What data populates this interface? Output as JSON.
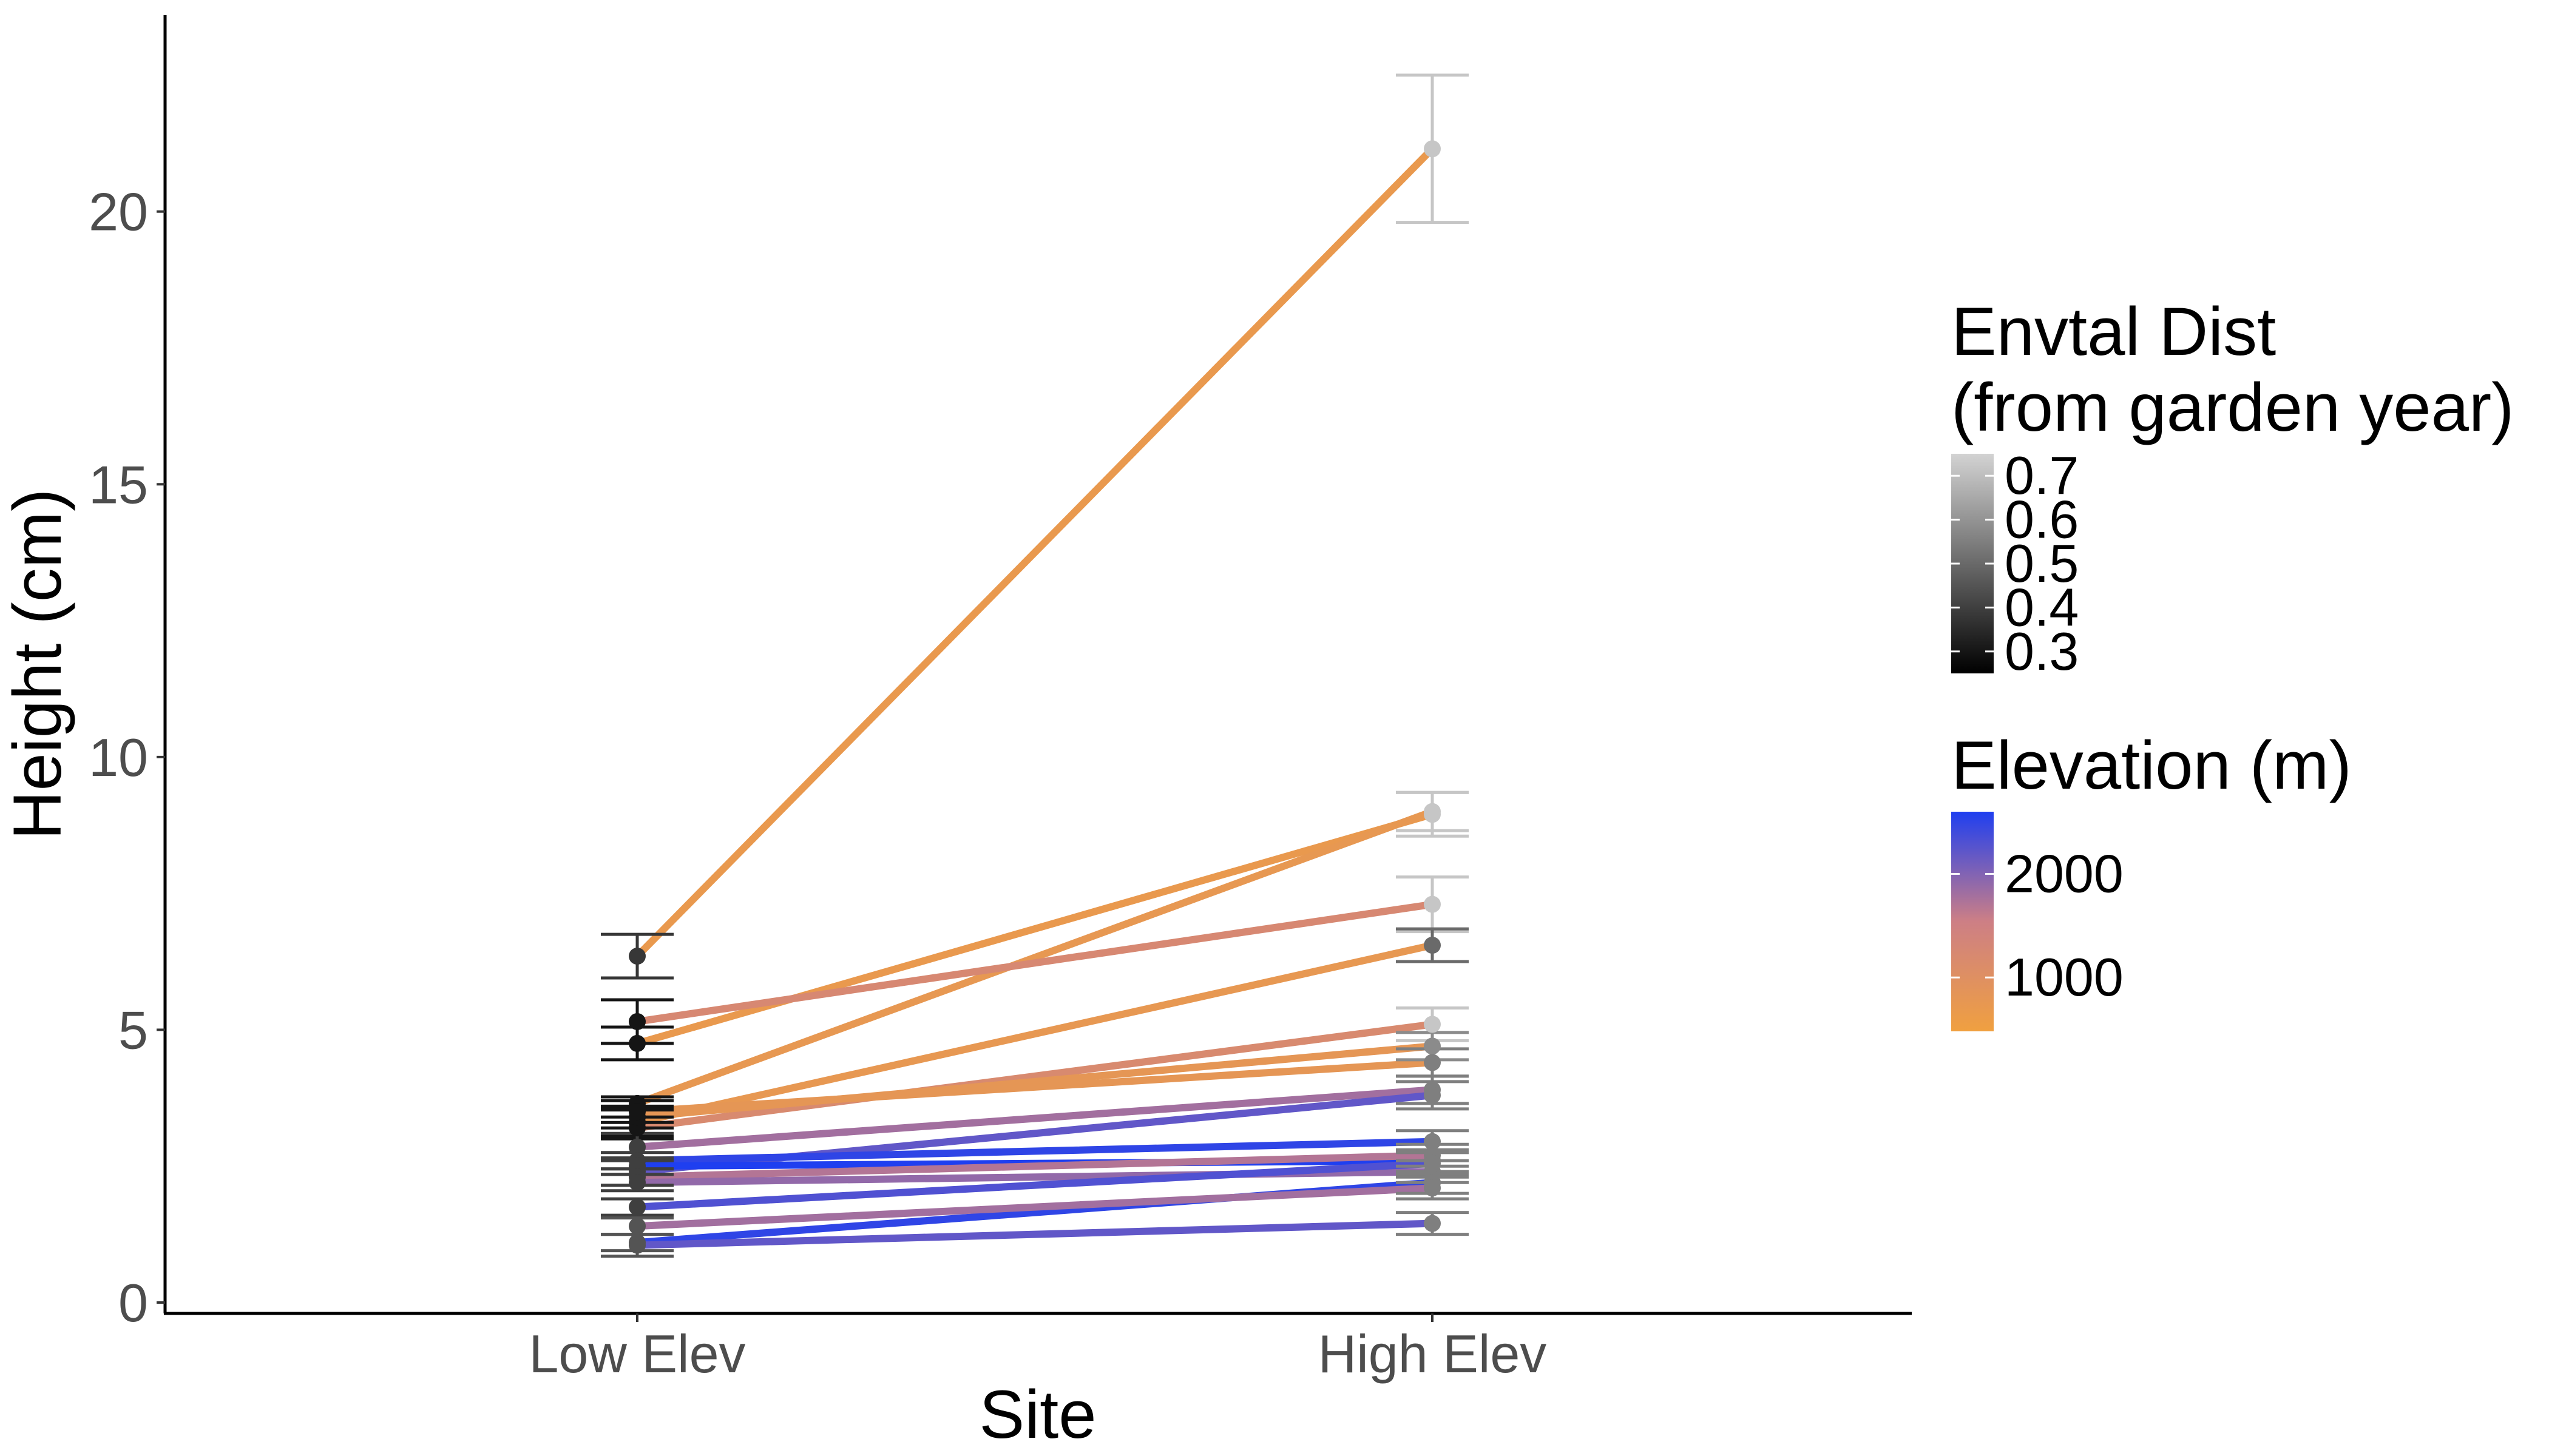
{
  "chart_data": {
    "type": "line",
    "xlabel": "Site",
    "ylabel": "Height (cm)",
    "categories": [
      "Low Elev",
      "High Elev"
    ],
    "ylim": [
      -0.2,
      23.6
    ],
    "yticks": [
      0,
      5,
      10,
      15,
      20
    ],
    "grid": false,
    "legend_position": "right",
    "legends": {
      "point_color": {
        "title_line1": "Envtal Dist",
        "title_line2": "(from garden year)",
        "labels": [
          "0.7",
          "0.6",
          "0.5",
          "0.4",
          "0.3"
        ],
        "values": [
          0.7,
          0.6,
          0.5,
          0.4,
          0.3
        ],
        "range": [
          0.25,
          0.75
        ],
        "color_low": "#000000",
        "color_high": "#d3d3d3"
      },
      "line_color": {
        "title": "Elevation (m)",
        "labels": [
          "2000",
          "1000"
        ],
        "values": [
          2000,
          1000
        ],
        "range": [
          480,
          2600
        ],
        "color_low": "#f0a040",
        "color_mid": "#cd7f85",
        "color_high": "#1f3ff0"
      }
    },
    "series": [
      {
        "values": [
          6.35,
          21.15
        ],
        "elevation": 700,
        "dist": [
          0.38,
          0.72
        ],
        "err": [
          0.4,
          1.35
        ]
      },
      {
        "values": [
          4.75,
          8.95
        ],
        "elevation": 700,
        "dist": [
          0.3,
          0.72
        ],
        "err": [
          0.3,
          0.4
        ]
      },
      {
        "values": [
          3.65,
          9.0
        ],
        "elevation": 750,
        "dist": [
          0.3,
          0.72
        ],
        "err": [
          0.12,
          0.35
        ]
      },
      {
        "values": [
          5.15,
          7.3
        ],
        "elevation": 1250,
        "dist": [
          0.3,
          0.72
        ],
        "err": [
          0.4,
          0.5
        ]
      },
      {
        "values": [
          3.3,
          6.55
        ],
        "elevation": 750,
        "dist": [
          0.3,
          0.5
        ],
        "err": [
          0.25,
          0.3
        ]
      },
      {
        "values": [
          3.2,
          5.1
        ],
        "elevation": 1200,
        "dist": [
          0.3,
          0.72
        ],
        "err": [
          0.2,
          0.3
        ]
      },
      {
        "values": [
          3.4,
          4.7
        ],
        "elevation": 800,
        "dist": [
          0.3,
          0.58
        ],
        "err": [
          0.2,
          0.25
        ]
      },
      {
        "values": [
          3.5,
          4.4
        ],
        "elevation": 800,
        "dist": [
          0.3,
          0.55
        ],
        "err": [
          0.2,
          0.25
        ]
      },
      {
        "values": [
          2.85,
          3.9
        ],
        "elevation": 1800,
        "dist": [
          0.4,
          0.55
        ],
        "err": [
          0.25,
          0.25
        ]
      },
      {
        "values": [
          2.4,
          3.8
        ],
        "elevation": 2200,
        "dist": [
          0.4,
          0.55
        ],
        "err": [
          0.25,
          0.25
        ]
      },
      {
        "values": [
          2.6,
          2.95
        ],
        "elevation": 2500,
        "dist": [
          0.4,
          0.55
        ],
        "err": [
          0.15,
          0.2
        ]
      },
      {
        "values": [
          2.5,
          2.6
        ],
        "elevation": 2600,
        "dist": [
          0.4,
          0.55
        ],
        "err": [
          0.15,
          0.2
        ]
      },
      {
        "values": [
          2.3,
          2.7
        ],
        "elevation": 1700,
        "dist": [
          0.4,
          0.55
        ],
        "err": [
          0.15,
          0.2
        ]
      },
      {
        "values": [
          2.2,
          2.4
        ],
        "elevation": 1900,
        "dist": [
          0.4,
          0.55
        ],
        "err": [
          0.15,
          0.2
        ]
      },
      {
        "values": [
          1.75,
          2.55
        ],
        "elevation": 2300,
        "dist": [
          0.4,
          0.55
        ],
        "err": [
          0.15,
          0.2
        ]
      },
      {
        "values": [
          1.1,
          2.2
        ],
        "elevation": 2500,
        "dist": [
          0.45,
          0.55
        ],
        "err": [
          0.15,
          0.2
        ]
      },
      {
        "values": [
          1.4,
          2.1
        ],
        "elevation": 1800,
        "dist": [
          0.45,
          0.55
        ],
        "err": [
          0.15,
          0.2
        ]
      },
      {
        "values": [
          1.05,
          1.45
        ],
        "elevation": 2200,
        "dist": [
          0.45,
          0.55
        ],
        "err": [
          0.2,
          0.2
        ]
      }
    ]
  }
}
